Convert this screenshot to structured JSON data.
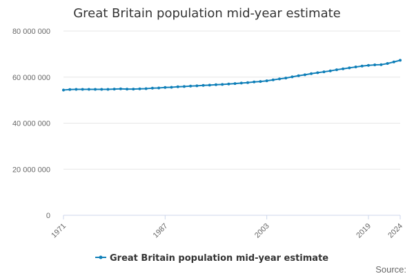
{
  "chart_data": {
    "type": "line",
    "title": "Great Britain population mid-year estimate",
    "xlabel": "",
    "ylabel": "",
    "x": [
      1971,
      1972,
      1973,
      1974,
      1975,
      1976,
      1977,
      1978,
      1979,
      1980,
      1981,
      1982,
      1983,
      1984,
      1985,
      1986,
      1987,
      1988,
      1989,
      1990,
      1991,
      1992,
      1993,
      1994,
      1995,
      1996,
      1997,
      1998,
      1999,
      2000,
      2001,
      2002,
      2003,
      2004,
      2005,
      2006,
      2007,
      2008,
      2009,
      2010,
      2011,
      2012,
      2013,
      2014,
      2015,
      2016,
      2017,
      2018,
      2019,
      2020,
      2021,
      2022,
      2023,
      2024
    ],
    "series": [
      {
        "name": "Great Britain population mid-year estimate",
        "color": "#0f7fb8",
        "values": [
          54400000,
          54600000,
          54700000,
          54700000,
          54700000,
          54700000,
          54700000,
          54700000,
          54800000,
          54900000,
          54800000,
          54800000,
          54900000,
          55000000,
          55200000,
          55300000,
          55500000,
          55600000,
          55800000,
          55900000,
          56100000,
          56200000,
          56400000,
          56500000,
          56700000,
          56800000,
          57000000,
          57200000,
          57400000,
          57600000,
          57900000,
          58100000,
          58400000,
          58800000,
          59200000,
          59600000,
          60100000,
          60600000,
          61000000,
          61500000,
          61900000,
          62300000,
          62700000,
          63200000,
          63600000,
          64000000,
          64400000,
          64800000,
          65100000,
          65300000,
          65400000,
          65900000,
          66600000,
          67300000
        ]
      }
    ],
    "x_ticks": [
      "1971",
      "1987",
      "2003",
      "2019",
      "2024"
    ],
    "y_ticks": [
      "0",
      "20 000 000",
      "40 000 000",
      "60 000 000",
      "80 000 000"
    ],
    "y_tick_values": [
      0,
      20000000,
      40000000,
      60000000,
      80000000
    ],
    "ylim": [
      0,
      80000000
    ],
    "xlim": [
      1971,
      2024
    ],
    "grid": true,
    "legend": "bottom-center",
    "source": "Source:"
  }
}
